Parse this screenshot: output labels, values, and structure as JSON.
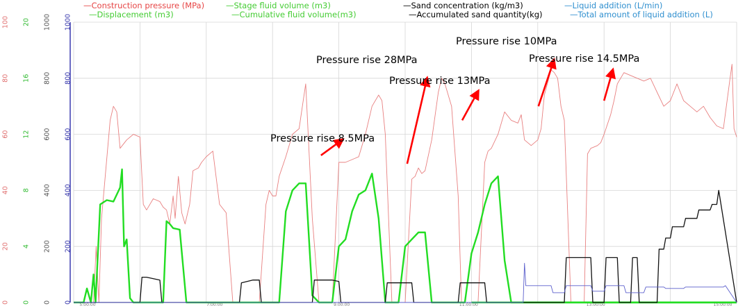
{
  "chart_data": {
    "type": "line",
    "legend": [
      {
        "key": "pressure",
        "label": "—Construction pressure (MPa)",
        "color": "#e64545"
      },
      {
        "key": "displacement",
        "label": "—Displacement (m3)",
        "color": "#44cc33"
      },
      {
        "key": "stage_fluid",
        "label": "—Stage fluid volume (m3)",
        "color": "#44cc33"
      },
      {
        "key": "cum_fluid",
        "label": "—Cumulative fluid volume(m3)",
        "color": "#44cc33"
      },
      {
        "key": "sand_conc",
        "label": "—Sand concentration (kg/m3)",
        "color": "#000000"
      },
      {
        "key": "acc_sand",
        "label": "—Accumulated sand quantity(kg)",
        "color": "#000000"
      },
      {
        "key": "liquid_add",
        "label": "—Liquid addition (L/min)",
        "color": "#2f8fcf"
      },
      {
        "key": "liquid_total",
        "label": "—Total amount of liquid addition (L)",
        "color": "#2f8fcf"
      }
    ],
    "axes": [
      {
        "key": "pressure",
        "color": "#e07070",
        "ticks": [
          "0",
          "20",
          "40",
          "60",
          "80",
          "100"
        ],
        "range": [
          0,
          100
        ]
      },
      {
        "key": "displacement",
        "color": "#33bb33",
        "ticks": [
          "0",
          "4",
          "8",
          "12",
          "16",
          "20"
        ],
        "range": [
          0,
          20
        ]
      },
      {
        "key": "sand",
        "color": "#555555",
        "ticks": [
          "0",
          "200",
          "400",
          "600",
          "800",
          "1000"
        ],
        "range": [
          0,
          1000
        ]
      },
      {
        "key": "liquid",
        "color": "#3333aa",
        "ticks": [
          "0",
          "200",
          "400",
          "600",
          "800",
          "1000"
        ],
        "range": [
          0,
          1000
        ]
      }
    ],
    "x_ticks": [
      "5:00:00",
      "7:00:00",
      "9:00:00",
      "11:00:00",
      "13:00:00",
      "15:00:00"
    ],
    "x_range": [
      0,
      100
    ],
    "grid": true,
    "annotations": [
      {
        "text": "Pressure rise 8.5MPa",
        "x": 42,
        "y": 58,
        "arrow": [
          [
            37.3,
            52.5
          ],
          [
            40.2,
            57.5
          ]
        ]
      },
      {
        "text": "Pressure rise 28MPa",
        "x": 49,
        "y": 86,
        "arrow": [
          [
            50.3,
            49.5
          ],
          [
            53.2,
            79
          ]
        ]
      },
      {
        "text": "Pressure rise 13MPa",
        "x": 60,
        "y": 78.5,
        "arrow": [
          [
            58.6,
            65
          ],
          [
            60.8,
            74.5
          ]
        ]
      },
      {
        "text": "Pressure rise 10MPa",
        "x": 70,
        "y": 92.5,
        "arrow": [
          [
            70.1,
            70
          ],
          [
            72.3,
            85.5
          ]
        ]
      },
      {
        "text": "Pressure rise 14.5MPa",
        "x": 81,
        "y": 86.5,
        "arrow": [
          [
            80,
            72
          ],
          [
            81.2,
            82
          ]
        ]
      }
    ],
    "series": [
      {
        "name": "Construction pressure",
        "color": "#e88080",
        "width": 0.9,
        "axis": "pressure",
        "x": [
          0,
          2,
          3,
          3.4,
          3.8,
          4.2,
          5.5,
          6,
          6.5,
          7,
          8,
          9,
          10,
          10.5,
          11,
          12,
          13,
          13.5,
          14,
          14.5,
          15,
          15.3,
          15.8,
          16.3,
          16.8,
          17.5,
          18,
          18.8,
          19.3,
          20,
          21,
          22,
          23,
          24,
          25,
          26,
          27,
          28,
          29,
          29.5,
          30,
          30.5,
          31,
          32,
          33,
          34,
          34.5,
          35,
          36,
          37,
          38,
          39,
          40,
          41,
          42,
          43,
          44,
          45,
          46,
          46.5,
          47,
          48,
          49,
          50,
          51,
          51.5,
          52,
          52.5,
          53,
          54,
          55,
          55.5,
          56,
          57,
          58,
          58.5,
          59,
          59.5,
          60,
          61,
          62,
          62.5,
          63,
          64,
          65,
          66,
          67,
          67.5,
          68,
          69,
          70,
          70.5,
          71,
          72,
          72.5,
          73,
          73.5,
          74,
          75,
          76,
          77,
          77.5,
          78,
          79,
          79.5,
          80,
          81,
          81.5,
          82,
          82.5,
          83,
          84,
          85,
          86,
          87,
          88,
          89,
          90,
          91,
          92,
          93,
          94,
          95,
          96,
          97,
          98,
          99,
          99.3,
          99.6,
          100
        ],
        "y": [
          0,
          0,
          0,
          20,
          0,
          30,
          65,
          70,
          68,
          55,
          58,
          60,
          59,
          35,
          33,
          37,
          36,
          34,
          33,
          28,
          38,
          30,
          45,
          32,
          28,
          35,
          47,
          48,
          50,
          52,
          54,
          35,
          32,
          0,
          0,
          0,
          0,
          0,
          35,
          40,
          38,
          38,
          45,
          52,
          60,
          62,
          70,
          78,
          30,
          0,
          0,
          0,
          50,
          50,
          51,
          52,
          60,
          70,
          74,
          72,
          60,
          0,
          0,
          0,
          44,
          45,
          48,
          46,
          47,
          58,
          75,
          80,
          78,
          70,
          38,
          0,
          0,
          0,
          0,
          0,
          50,
          54,
          55,
          60,
          68,
          65,
          64,
          67,
          58,
          56,
          58,
          62,
          74,
          83,
          82,
          80,
          70,
          65,
          0,
          0,
          0,
          53,
          55,
          56,
          57,
          60,
          67,
          72,
          78,
          80,
          82,
          81,
          80,
          79,
          80,
          75,
          70,
          72,
          78,
          72,
          70,
          68,
          70,
          66,
          63,
          62,
          80,
          85,
          62,
          59
        ]
      },
      {
        "name": "Displacement",
        "color": "#22dd22",
        "width": 2.4,
        "axis": "displacement",
        "x": [
          0,
          1.5,
          2,
          2.6,
          3,
          3.3,
          4,
          5,
          6,
          7,
          7.3,
          7.6,
          8,
          8.5,
          9,
          9.5,
          10,
          10.5,
          11,
          11.5,
          12,
          12.3,
          12.6,
          13,
          13.5,
          14,
          14.5,
          15,
          16,
          17,
          18,
          19,
          20,
          21,
          22,
          23,
          24,
          25,
          26,
          27,
          28,
          29,
          30,
          31,
          32,
          33,
          34,
          35,
          36,
          37,
          38,
          39,
          40,
          41,
          42,
          43,
          44,
          45,
          46,
          47,
          48,
          49,
          50,
          51,
          52,
          53,
          54,
          55,
          56,
          57,
          58,
          59,
          60,
          61,
          62,
          63,
          64,
          65,
          66,
          67,
          68,
          69,
          70,
          71,
          72,
          73,
          74,
          75,
          76,
          77,
          78,
          79,
          80,
          81,
          82,
          83,
          84,
          85,
          86,
          87,
          88,
          89,
          90,
          91,
          92,
          93,
          94,
          95,
          96,
          97,
          98,
          99,
          99.5,
          100
        ],
        "y": [
          0,
          0,
          1,
          0,
          2,
          0,
          7,
          7.3,
          7.2,
          8.2,
          9.5,
          4,
          4.5,
          0.3,
          0,
          0,
          0,
          0,
          0,
          0,
          0,
          0,
          0,
          0,
          0,
          5.8,
          5.6,
          5.3,
          5.2,
          0,
          0,
          0,
          0,
          0,
          0,
          0,
          0,
          0,
          0,
          0,
          0,
          0,
          0,
          0,
          6.5,
          8,
          8.5,
          8.5,
          0.5,
          0,
          0,
          0,
          4,
          4.5,
          6.5,
          7.7,
          8,
          9.2,
          6,
          0,
          0,
          0,
          4,
          4.5,
          5,
          5,
          0,
          0,
          0,
          0,
          0,
          0,
          3.5,
          5,
          7,
          8.5,
          9,
          3,
          0,
          0,
          0,
          0,
          0,
          0,
          0,
          0,
          0,
          0,
          0,
          0,
          0,
          0,
          0,
          0,
          0,
          0,
          0,
          0,
          0,
          0,
          0,
          0,
          0,
          0,
          0,
          0,
          0,
          0,
          0,
          0,
          0,
          0,
          0,
          0
        ]
      },
      {
        "name": "Cumulative fluid volume",
        "color": "#22dd22",
        "width": 2.4,
        "axis": "displacement",
        "x": [
          60,
          61,
          62,
          63,
          64,
          65,
          66,
          66.5,
          67,
          68,
          69,
          70,
          71,
          72,
          73,
          74,
          75,
          76,
          77,
          78,
          79,
          80,
          81,
          82,
          83,
          84,
          85,
          86,
          87,
          88,
          89,
          90,
          91,
          92,
          93,
          94,
          95,
          96,
          97,
          98,
          98.5,
          99,
          99.5,
          100
        ],
        "y": [
          0,
          0,
          0,
          0,
          0,
          0,
          0,
          0,
          0,
          0,
          0,
          0,
          0,
          0,
          0,
          0,
          0,
          0,
          0,
          0,
          0,
          0,
          0,
          0,
          0,
          0,
          0,
          0,
          0,
          0,
          0,
          0,
          0,
          0,
          0,
          0,
          0,
          0,
          0,
          0,
          0,
          0,
          0,
          0
        ]
      },
      {
        "name": "Sand concentration",
        "color": "#111111",
        "width": 1.3,
        "axis": "sand",
        "x": [
          0,
          10,
          10.3,
          11,
          13,
          13.3,
          25,
          25.3,
          27,
          28,
          28.3,
          36,
          36.3,
          39,
          40,
          40.3,
          47,
          47.3,
          50,
          51,
          51.3,
          58,
          58.3,
          61,
          62,
          62.3,
          74,
          74.3,
          78,
          78.3,
          80,
          80.3,
          82,
          82.3,
          84,
          84.3,
          85,
          85.3,
          88,
          88.3,
          89,
          89.3,
          90,
          90.3,
          92,
          92.3,
          94,
          94.3,
          96,
          96.3,
          97,
          97.3,
          100
        ],
        "y": [
          0,
          0,
          90,
          90,
          80,
          0,
          0,
          70,
          80,
          80,
          0,
          0,
          80,
          80,
          75,
          0,
          0,
          70,
          70,
          70,
          0,
          0,
          70,
          70,
          70,
          0,
          0,
          160,
          160,
          0,
          0,
          160,
          160,
          0,
          0,
          160,
          160,
          0,
          0,
          190,
          190,
          230,
          230,
          270,
          270,
          300,
          300,
          330,
          330,
          350,
          350,
          400,
          0
        ]
      },
      {
        "name": "Liquid addition",
        "color": "#5b5fcc",
        "width": 0.9,
        "axis": "liquid",
        "x": [
          0,
          67.8,
          68,
          68.2,
          72,
          72.3,
          74,
          74.3,
          78,
          78.3,
          80,
          80.3,
          83,
          83.3,
          86,
          86.3,
          89,
          89.3,
          92,
          92.3,
          98,
          98.3,
          100
        ],
        "y": [
          0,
          0,
          140,
          60,
          60,
          35,
          35,
          60,
          60,
          40,
          40,
          60,
          60,
          35,
          35,
          55,
          55,
          50,
          50,
          55,
          55,
          60,
          0
        ]
      }
    ]
  }
}
